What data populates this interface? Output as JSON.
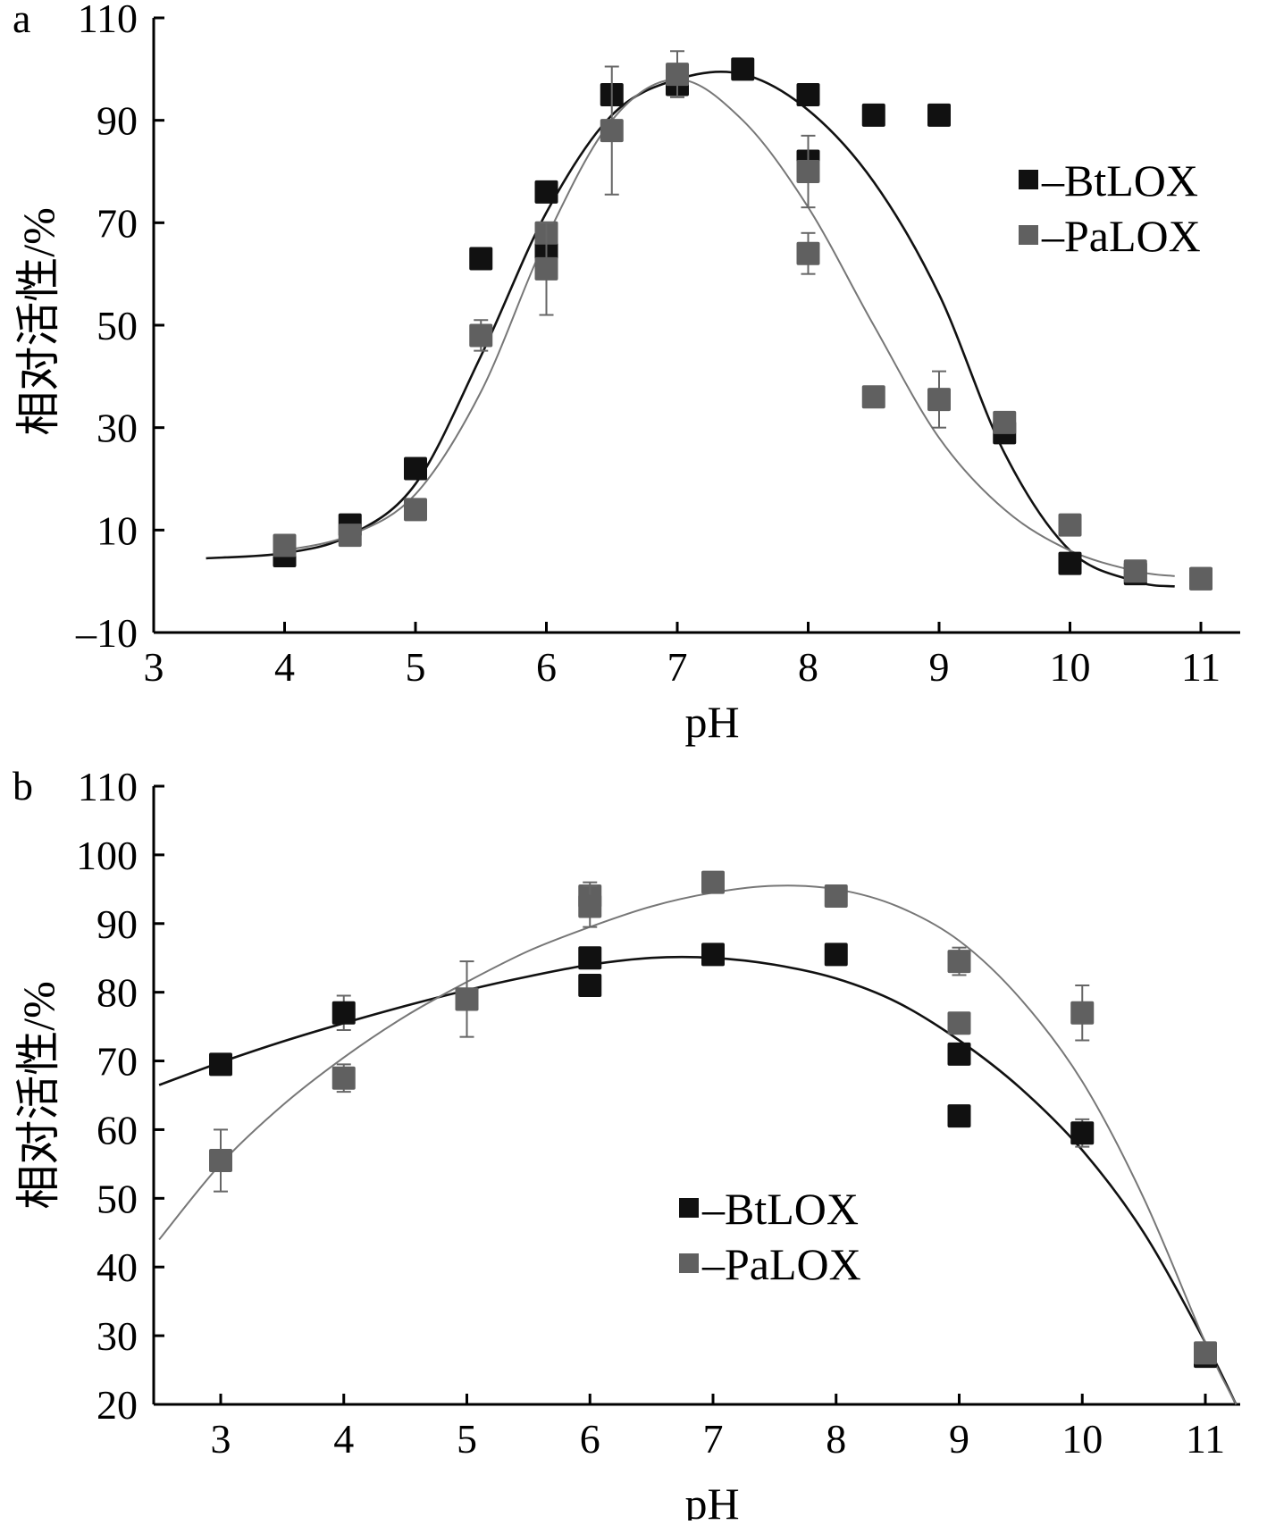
{
  "chart_data": [
    {
      "type": "scatter",
      "panel_label": "a",
      "xlabel": "pH",
      "ylabel": "相对活性/%",
      "xlim": [
        3,
        11
      ],
      "ylim": [
        -10,
        110
      ],
      "xticks": [
        3,
        4,
        5,
        6,
        7,
        8,
        9,
        10,
        11
      ],
      "yticks": [
        -10,
        10,
        30,
        50,
        70,
        90,
        110
      ],
      "legend_position": "right",
      "grid": false,
      "series": [
        {
          "name": "BtLOX",
          "legend_label": "–BtLOX",
          "color": "#111111",
          "points": [
            {
              "x": 4.0,
              "y": 5
            },
            {
              "x": 4.5,
              "y": 11
            },
            {
              "x": 5.0,
              "y": 22
            },
            {
              "x": 5.5,
              "y": 63
            },
            {
              "x": 6.0,
              "y": 76
            },
            {
              "x": 6.0,
              "y": 64
            },
            {
              "x": 6.5,
              "y": 95
            },
            {
              "x": 7.0,
              "y": 97
            },
            {
              "x": 7.5,
              "y": 100
            },
            {
              "x": 8.0,
              "y": 95
            },
            {
              "x": 8.0,
              "y": 82
            },
            {
              "x": 8.5,
              "y": 91
            },
            {
              "x": 9.0,
              "y": 91
            },
            {
              "x": 9.5,
              "y": 29
            },
            {
              "x": 10.0,
              "y": 3.5
            },
            {
              "x": 10.5,
              "y": 1.5
            },
            {
              "x": 11.0,
              "y": 0.5
            }
          ],
          "fit": [
            {
              "x": 3.4,
              "y": 4.5
            },
            {
              "x": 4.0,
              "y": 5.5
            },
            {
              "x": 4.5,
              "y": 9
            },
            {
              "x": 5.0,
              "y": 19
            },
            {
              "x": 5.5,
              "y": 44
            },
            {
              "x": 6.0,
              "y": 72
            },
            {
              "x": 6.5,
              "y": 91
            },
            {
              "x": 7.0,
              "y": 98
            },
            {
              "x": 7.5,
              "y": 99
            },
            {
              "x": 8.0,
              "y": 92
            },
            {
              "x": 8.5,
              "y": 78
            },
            {
              "x": 9.0,
              "y": 56
            },
            {
              "x": 9.5,
              "y": 25
            },
            {
              "x": 10.0,
              "y": 6
            },
            {
              "x": 10.5,
              "y": 0
            },
            {
              "x": 10.8,
              "y": -1
            }
          ]
        },
        {
          "name": "PaLOX",
          "legend_label": "–PaLOX",
          "color": "#606060",
          "points": [
            {
              "x": 4.0,
              "y": 7,
              "err": 0
            },
            {
              "x": 4.5,
              "y": 9,
              "err": 0
            },
            {
              "x": 5.0,
              "y": 14,
              "err": 0
            },
            {
              "x": 5.5,
              "y": 48,
              "err": 3
            },
            {
              "x": 6.0,
              "y": 68,
              "err": 2
            },
            {
              "x": 6.0,
              "y": 61,
              "err": 9
            },
            {
              "x": 6.5,
              "y": 88,
              "err": 12.5
            },
            {
              "x": 7.0,
              "y": 99,
              "err": 4.5
            },
            {
              "x": 8.0,
              "y": 80,
              "err": 7
            },
            {
              "x": 8.0,
              "y": 64,
              "err": 4
            },
            {
              "x": 8.5,
              "y": 36,
              "err": 0
            },
            {
              "x": 9.0,
              "y": 35.5,
              "err": 5.5
            },
            {
              "x": 9.5,
              "y": 31,
              "err": 0
            },
            {
              "x": 10.0,
              "y": 11,
              "err": 0
            },
            {
              "x": 10.5,
              "y": 2,
              "err": 0
            },
            {
              "x": 11.0,
              "y": 0.5,
              "err": 0
            }
          ],
          "fit": [
            {
              "x": 4.0,
              "y": 6
            },
            {
              "x": 4.5,
              "y": 9
            },
            {
              "x": 5.0,
              "y": 17
            },
            {
              "x": 5.5,
              "y": 37
            },
            {
              "x": 6.0,
              "y": 67
            },
            {
              "x": 6.5,
              "y": 90
            },
            {
              "x": 7.0,
              "y": 98
            },
            {
              "x": 7.5,
              "y": 90
            },
            {
              "x": 8.0,
              "y": 73
            },
            {
              "x": 8.5,
              "y": 50
            },
            {
              "x": 9.0,
              "y": 28
            },
            {
              "x": 9.5,
              "y": 14
            },
            {
              "x": 10.0,
              "y": 6
            },
            {
              "x": 10.5,
              "y": 2
            },
            {
              "x": 10.8,
              "y": 1
            }
          ]
        }
      ]
    },
    {
      "type": "scatter",
      "panel_label": "b",
      "xlabel": "pH",
      "ylabel": "相对活性/%",
      "xlim": [
        2.5,
        11.5
      ],
      "ylim": [
        20,
        110
      ],
      "xticks": [
        3,
        4,
        5,
        6,
        7,
        8,
        9,
        10,
        11
      ],
      "yticks": [
        20,
        30,
        40,
        50,
        60,
        70,
        80,
        90,
        100,
        110
      ],
      "legend_position": "center-bottom",
      "grid": false,
      "series": [
        {
          "name": "BtLOX",
          "legend_label": "–BtLOX",
          "color": "#111111",
          "points": [
            {
              "x": 3,
              "y": 69.5,
              "err": 0
            },
            {
              "x": 4,
              "y": 77,
              "err": 2.5
            },
            {
              "x": 5,
              "y": 79,
              "err": 0
            },
            {
              "x": 6,
              "y": 85,
              "err": 0
            },
            {
              "x": 6,
              "y": 81,
              "err": 0
            },
            {
              "x": 7,
              "y": 85.5,
              "err": 0
            },
            {
              "x": 8,
              "y": 85.5,
              "err": 0
            },
            {
              "x": 9,
              "y": 71,
              "err": 0
            },
            {
              "x": 9,
              "y": 62,
              "err": 0
            },
            {
              "x": 10,
              "y": 59.5,
              "err": 2
            },
            {
              "x": 11,
              "y": 27,
              "err": 0
            }
          ],
          "fit": [
            {
              "x": 2.5,
              "y": 66.5
            },
            {
              "x": 3.0,
              "y": 69.8
            },
            {
              "x": 3.5,
              "y": 72.8
            },
            {
              "x": 4.0,
              "y": 75.5
            },
            {
              "x": 4.5,
              "y": 78
            },
            {
              "x": 5.0,
              "y": 80.3
            },
            {
              "x": 5.5,
              "y": 82.3
            },
            {
              "x": 6.0,
              "y": 84
            },
            {
              "x": 6.5,
              "y": 85
            },
            {
              "x": 7.0,
              "y": 85
            },
            {
              "x": 7.5,
              "y": 84
            },
            {
              "x": 8.0,
              "y": 82
            },
            {
              "x": 8.5,
              "y": 78.5
            },
            {
              "x": 9.0,
              "y": 73
            },
            {
              "x": 9.5,
              "y": 66
            },
            {
              "x": 10.0,
              "y": 57
            },
            {
              "x": 10.5,
              "y": 45
            },
            {
              "x": 11.0,
              "y": 29
            },
            {
              "x": 11.25,
              "y": 20
            }
          ]
        },
        {
          "name": "PaLOX",
          "legend_label": "–PaLOX",
          "color": "#606060",
          "points": [
            {
              "x": 3,
              "y": 55.5,
              "err": 4.5
            },
            {
              "x": 4,
              "y": 67.5,
              "err": 2
            },
            {
              "x": 5,
              "y": 79,
              "err": 5.5
            },
            {
              "x": 6,
              "y": 94,
              "err": 2
            },
            {
              "x": 6,
              "y": 92.5,
              "err": 3
            },
            {
              "x": 7,
              "y": 96,
              "err": 0
            },
            {
              "x": 8,
              "y": 94,
              "err": 0
            },
            {
              "x": 9,
              "y": 84.5,
              "err": 2
            },
            {
              "x": 9,
              "y": 75.5,
              "err": 1.5
            },
            {
              "x": 10,
              "y": 77,
              "err": 4
            },
            {
              "x": 11,
              "y": 27.5,
              "err": 0
            }
          ],
          "fit": [
            {
              "x": 2.5,
              "y": 44
            },
            {
              "x": 3.0,
              "y": 55
            },
            {
              "x": 3.5,
              "y": 63.5
            },
            {
              "x": 4.0,
              "y": 70.5
            },
            {
              "x": 4.5,
              "y": 76.5
            },
            {
              "x": 5.0,
              "y": 81.5
            },
            {
              "x": 5.5,
              "y": 86
            },
            {
              "x": 6.0,
              "y": 89.5
            },
            {
              "x": 6.5,
              "y": 92.5
            },
            {
              "x": 7.0,
              "y": 94.5
            },
            {
              "x": 7.5,
              "y": 95.5
            },
            {
              "x": 8.0,
              "y": 95
            },
            {
              "x": 8.5,
              "y": 92.5
            },
            {
              "x": 9.0,
              "y": 87.5
            },
            {
              "x": 9.5,
              "y": 79
            },
            {
              "x": 10.0,
              "y": 67
            },
            {
              "x": 10.5,
              "y": 50
            },
            {
              "x": 11.0,
              "y": 29
            },
            {
              "x": 11.25,
              "y": 20
            }
          ]
        }
      ]
    }
  ]
}
